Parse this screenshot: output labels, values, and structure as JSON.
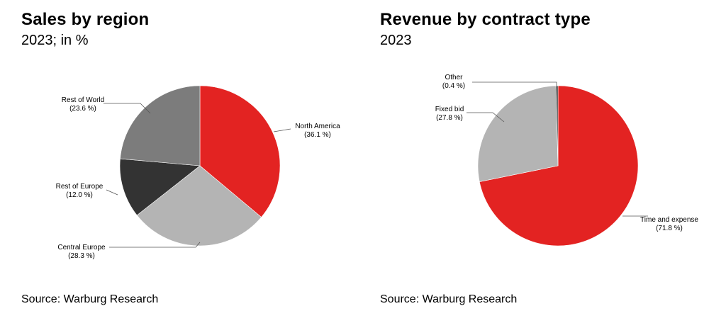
{
  "chart_data": [
    {
      "type": "pie",
      "title": "Sales by region",
      "subtitle": "2023; in %",
      "source": "Source: Warburg Research",
      "slices": [
        {
          "label": "North America",
          "value": 36.1,
          "value_label": "(36.1 %)",
          "color": "#e32322"
        },
        {
          "label": "Central Europe",
          "value": 28.3,
          "value_label": "(28.3 %)",
          "color": "#b4b4b4"
        },
        {
          "label": "Rest of Europe",
          "value": 12.0,
          "value_label": "(12.0 %)",
          "color": "#333333"
        },
        {
          "label": "Rest of World",
          "value": 23.6,
          "value_label": "(23.6 %)",
          "color": "#7c7c7c"
        }
      ]
    },
    {
      "type": "pie",
      "title": "Revenue by contract type",
      "subtitle": "2023",
      "source": "Source: Warburg Research",
      "slices": [
        {
          "label": "Time and expense",
          "value": 71.8,
          "value_label": "(71.8 %)",
          "color": "#e32322"
        },
        {
          "label": "Fixed bid",
          "value": 27.8,
          "value_label": "(27.8 %)",
          "color": "#b4b4b4"
        },
        {
          "label": "Other",
          "value": 0.4,
          "value_label": "(0.4 %)",
          "color": "#333333"
        }
      ]
    }
  ]
}
